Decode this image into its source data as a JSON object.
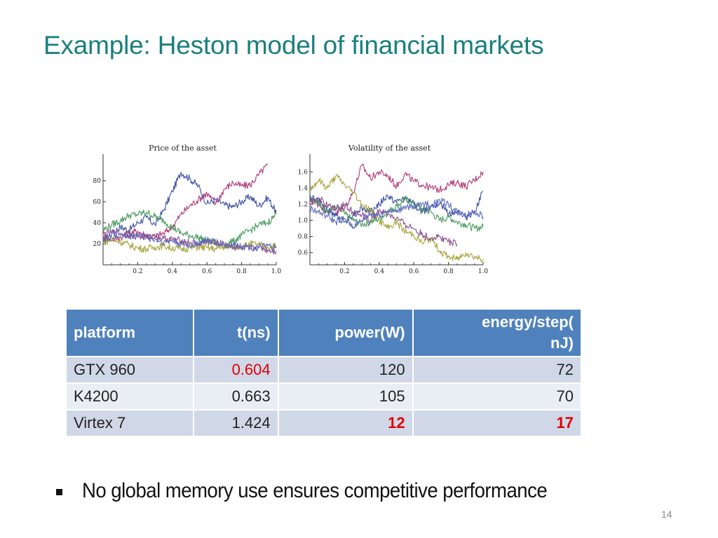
{
  "slide": {
    "title": "Example: Heston model of financial markets",
    "bullet": "No global memory use ensures competitive performance",
    "page_number": "14"
  },
  "table": {
    "headers": [
      "platform",
      "t(ns)",
      "power(W)",
      "energy/step(\nnJ)"
    ],
    "rows": [
      [
        "GTX 960",
        "0.604",
        "120",
        "72"
      ],
      [
        "K4200",
        "0.663",
        "105",
        "70"
      ],
      [
        "Virtex 7",
        "1.424",
        "12",
        "17"
      ]
    ]
  },
  "colors": {
    "title": "#1a7f7f",
    "table_header": "#4f81bd",
    "row_odd": "#d0d8e8",
    "row_even": "#e9edf4",
    "highlight": "#e00000"
  },
  "chart_data": [
    {
      "type": "line",
      "title": "Price of the asset",
      "xlim": [
        0,
        1.0
      ],
      "ylim": [
        0,
        100
      ],
      "xticks": [
        "0.2",
        "0.4",
        "0.6",
        "0.8",
        "1.0"
      ],
      "xtick_values": [
        0.2,
        0.4,
        0.6,
        0.8,
        1.0
      ],
      "yticks": [
        "20",
        "40",
        "60",
        "80"
      ],
      "ytick_values": [
        20,
        40,
        60,
        80
      ],
      "x": [
        0.0,
        0.05,
        0.1,
        0.15,
        0.2,
        0.25,
        0.3,
        0.35,
        0.4,
        0.45,
        0.5,
        0.55,
        0.6,
        0.65,
        0.7,
        0.75,
        0.8,
        0.85,
        0.9,
        0.95,
        1.0
      ],
      "series": [
        {
          "color": "#3b4fa3",
          "values": [
            22,
            30,
            36,
            33,
            40,
            45,
            38,
            52,
            70,
            88,
            82,
            75,
            58,
            62,
            57,
            55,
            60,
            65,
            56,
            64,
            50
          ]
        },
        {
          "color": "#b03a78",
          "values": [
            27,
            24,
            26,
            30,
            32,
            28,
            27,
            30,
            36,
            48,
            56,
            62,
            68,
            58,
            72,
            78,
            75,
            76,
            86,
            95,
            null
          ]
        },
        {
          "color": "#4a9b5e",
          "values": [
            33,
            38,
            42,
            47,
            48,
            50,
            46,
            42,
            36,
            30,
            28,
            26,
            23,
            20,
            18,
            22,
            28,
            33,
            38,
            40,
            48
          ]
        },
        {
          "color": "#a9a43c",
          "values": [
            21,
            24,
            22,
            19,
            16,
            15,
            17,
            18,
            16,
            15,
            16,
            17,
            16,
            15,
            17,
            18,
            17,
            20,
            19,
            17,
            18
          ]
        },
        {
          "color": "#8a4e8f",
          "values": [
            29,
            31,
            30,
            28,
            27,
            26,
            27,
            25,
            24,
            23,
            21,
            20,
            22,
            21,
            19,
            17,
            16,
            15,
            17,
            14,
            13
          ]
        },
        {
          "color": "#5b6bbd",
          "values": [
            25,
            26,
            28,
            27,
            29,
            26,
            24,
            22,
            23,
            20,
            18,
            21,
            23,
            22,
            20,
            19,
            18,
            17,
            16,
            18,
            16
          ]
        }
      ]
    },
    {
      "type": "line",
      "title": "Volatility of the asset",
      "xlim": [
        0,
        1.0
      ],
      "ylim": [
        0.45,
        1.75
      ],
      "xticks": [
        "0.2",
        "0.4",
        "0.6",
        "0.8",
        "1.0"
      ],
      "xtick_values": [
        0.2,
        0.4,
        0.6,
        0.8,
        1.0
      ],
      "yticks": [
        "0.6",
        "0.8",
        "1.0",
        "1.2",
        "1.4",
        "1.6"
      ],
      "ytick_values": [
        0.6,
        0.8,
        1.0,
        1.2,
        1.4,
        1.6
      ],
      "x": [
        0.0,
        0.05,
        0.1,
        0.15,
        0.2,
        0.25,
        0.3,
        0.35,
        0.4,
        0.45,
        0.5,
        0.55,
        0.6,
        0.65,
        0.7,
        0.75,
        0.8,
        0.85,
        0.9,
        0.95,
        1.0
      ],
      "series": [
        {
          "color": "#b03a78",
          "values": [
            1.25,
            1.2,
            1.12,
            1.08,
            1.15,
            1.35,
            1.68,
            1.52,
            1.6,
            1.55,
            1.42,
            1.58,
            1.48,
            1.44,
            1.4,
            1.38,
            1.44,
            1.47,
            1.42,
            1.5,
            1.6
          ]
        },
        {
          "color": "#3b4fa3",
          "values": [
            1.3,
            1.24,
            1.12,
            1.06,
            0.98,
            1.08,
            1.15,
            1.1,
            1.2,
            1.3,
            1.22,
            1.28,
            1.2,
            1.1,
            1.18,
            1.22,
            1.08,
            1.12,
            1.04,
            1.1,
            1.36
          ]
        },
        {
          "color": "#a9a43c",
          "values": [
            1.38,
            1.5,
            1.4,
            1.55,
            1.44,
            1.35,
            1.2,
            1.12,
            1.0,
            0.9,
            0.98,
            0.86,
            0.82,
            0.72,
            0.78,
            0.62,
            0.55,
            0.52,
            0.6,
            0.55,
            0.52
          ]
        },
        {
          "color": "#4a9b5e",
          "values": [
            1.3,
            1.2,
            1.12,
            1.16,
            1.08,
            1.0,
            0.95,
            0.98,
            1.02,
            1.1,
            1.18,
            1.26,
            1.2,
            1.14,
            1.1,
            1.0,
            1.04,
            0.98,
            0.95,
            0.9,
            0.92
          ]
        },
        {
          "color": "#8a4e8f",
          "values": [
            1.22,
            1.28,
            1.18,
            1.15,
            1.2,
            1.1,
            1.06,
            1.0,
            1.12,
            1.08,
            1.02,
            0.95,
            0.9,
            0.82,
            0.78,
            0.8,
            0.74,
            0.7,
            null,
            null,
            null
          ]
        },
        {
          "color": "#5b6bbd",
          "values": [
            1.15,
            1.1,
            1.05,
            0.98,
            1.02,
            0.92,
            1.0,
            1.08,
            1.06,
            1.12,
            1.1,
            1.18,
            1.14,
            1.22,
            1.18,
            1.25,
            1.2,
            1.1,
            1.06,
            1.12,
            1.04
          ]
        }
      ]
    }
  ]
}
